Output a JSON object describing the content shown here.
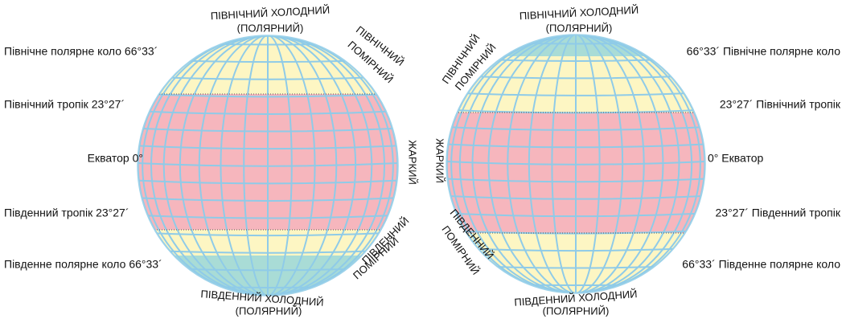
{
  "left_globe": {
    "line_labels": [
      "Північне полярне коло 66°33´",
      "Північний тропік 23°27´",
      "Екватор 0°",
      "Південний тропік 23°27´",
      "Південне полярне коло 66°33´"
    ],
    "zone_labels": [
      "ПІВНІЧНИЙ ХОЛОДНИЙ",
      "(ПОЛЯРНИЙ)",
      "ПІВНІЧНИЙ",
      "ПОМІРНИЙ",
      "ЖАРКИЙ",
      "ПІВДЕННИЙ",
      "ПОМІРНИЙ",
      "ПІВДЕННИЙ ХОЛОДНИЙ",
      "(ПОЛЯРНИЙ)"
    ]
  },
  "right_globe": {
    "line_labels": [
      "66°33´ Північне полярне коло",
      "23°27´ Північний тропік",
      "0° Екватор",
      "23°27´ Південний тропік",
      "66°33´ Південне полярне коло"
    ],
    "zone_labels": [
      "ПІВНІЧНИЙ ХОЛОДНИЙ",
      "(ПОЛЯРНИЙ)",
      "ПІВНІЧНИЙ",
      "ПОМІРНИЙ",
      "ЖАРКИЙ",
      "ПІВДЕННИЙ",
      "ПОМІРНИЙ",
      "ПІВДЕННИЙ ХОЛОДНИЙ",
      "(ПОЛЯРНИЙ)"
    ]
  }
}
